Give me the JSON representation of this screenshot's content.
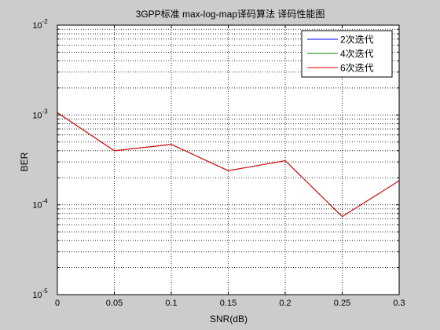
{
  "chart_data": {
    "type": "line",
    "title": "3GPP标准 max-log-map译码算法 译码性能图",
    "xlabel": "SNR(dB)",
    "ylabel": "BER",
    "xlim": [
      0,
      0.3
    ],
    "ylim": [
      1e-05,
      0.01
    ],
    "yscale": "log",
    "grid": true,
    "legend_position": "top-right",
    "x_ticks": [
      0,
      0.05,
      0.1,
      0.15,
      0.2,
      0.25,
      0.3
    ],
    "x_tick_labels": [
      "0",
      "0.05",
      "0.1",
      "0.15",
      "0.2",
      "0.25",
      "0.3"
    ],
    "y_ticks": [
      {
        "value": 1e-05,
        "base": "10",
        "exp": "-5"
      },
      {
        "value": 0.0001,
        "base": "10",
        "exp": "-4"
      },
      {
        "value": 0.001,
        "base": "10",
        "exp": "-3"
      },
      {
        "value": 0.01,
        "base": "10",
        "exp": "-2"
      }
    ],
    "x": [
      0,
      0.05,
      0.1,
      0.15,
      0.2,
      0.25,
      0.3
    ],
    "series": [
      {
        "name": "2次迭代",
        "color": "#0000ff",
        "values": [
          0.00106,
          0.0004,
          0.00047,
          0.00024,
          0.00031,
          7.4e-05,
          0.000185
        ]
      },
      {
        "name": "4次迭代",
        "color": "#008000",
        "values": [
          0.00106,
          0.0004,
          0.00047,
          0.00024,
          0.00031,
          7.4e-05,
          0.000185
        ]
      },
      {
        "name": "6次迭代",
        "color": "#ff0000",
        "values": [
          0.00106,
          0.0004,
          0.00047,
          0.00024,
          0.00031,
          7.4e-05,
          0.000185
        ]
      }
    ]
  }
}
